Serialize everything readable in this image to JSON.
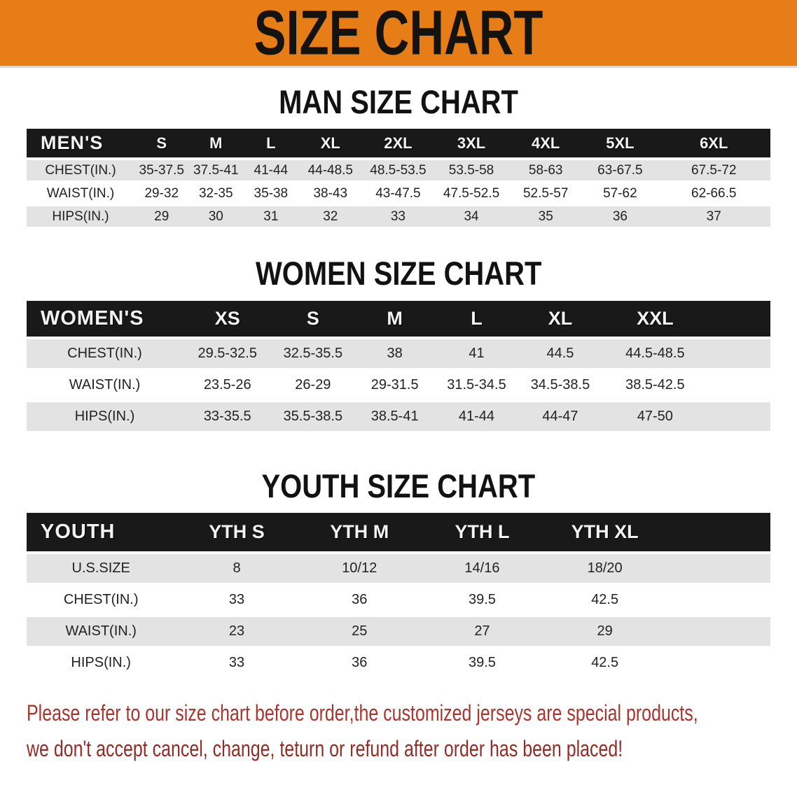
{
  "banner": {
    "title": "SIZE CHART"
  },
  "colors": {
    "banner_bg": "#e67d16",
    "title_color": "#151310",
    "header_bar": "#191919",
    "row_shade": "#e3e3e3",
    "disclaimer_red_1": "#a8352e",
    "disclaimer_red_2": "#8f2d27"
  },
  "sections": [
    {
      "heading": "MAN SIZE CHART",
      "table": {
        "header_label": "MEN'S",
        "columns": [
          "S",
          "M",
          "L",
          "XL",
          "2XL",
          "3XL",
          "4XL",
          "5XL",
          "6XL"
        ],
        "col_widths": [
          "14.5%",
          "7.3%",
          "7.3%",
          "7.5%",
          "8.5%",
          "9.7%",
          "10%",
          "10%",
          "10%",
          "15.2%"
        ],
        "rows": [
          {
            "label": "CHEST(IN.)",
            "values": [
              "35-37.5",
              "37.5-41",
              "41-44",
              "44-48.5",
              "48.5-53.5",
              "53.5-58",
              "58-63",
              "63-67.5",
              "67.5-72"
            ]
          },
          {
            "label": "WAIST(IN.)",
            "values": [
              "29-32",
              "32-35",
              "35-38",
              "38-43",
              "43-47.5",
              "47.5-52.5",
              "52.5-57",
              "57-62",
              "62-66.5"
            ]
          },
          {
            "label": "HIPS(IN.)",
            "values": [
              "29",
              "30",
              "31",
              "32",
              "33",
              "34",
              "35",
              "36",
              "37"
            ]
          }
        ]
      }
    },
    {
      "heading": "WOMEN SIZE CHART",
      "table": {
        "header_label": "WOMEN'S",
        "columns": [
          "XS",
          "S",
          "M",
          "L",
          "XL",
          "XXL"
        ],
        "col_widths": [
          "21%",
          "12%",
          "11%",
          "11%",
          "11%",
          "11.5%",
          "14%",
          "8.5%"
        ],
        "rows": [
          {
            "label": "CHEST(IN.)",
            "values": [
              "29.5-32.5",
              "32.5-35.5",
              "38",
              "41",
              "44.5",
              "44.5-48.5"
            ]
          },
          {
            "label": "WAIST(IN.)",
            "values": [
              "23.5-26",
              "26-29",
              "29-31.5",
              "31.5-34.5",
              "34.5-38.5",
              "38.5-42.5"
            ]
          },
          {
            "label": "HIPS(IN.)",
            "values": [
              "33-35.5",
              "35.5-38.5",
              "38.5-41",
              "41-44",
              "44-47",
              "47-50"
            ]
          }
        ]
      }
    },
    {
      "heading": "YOUTH SIZE CHART",
      "table": {
        "header_label": "YOUTH",
        "columns": [
          "YTH S",
          "YTH M",
          "YTH L",
          "YTH XL"
        ],
        "col_widths": [
          "20%",
          "16.5%",
          "16.5%",
          "16.5%",
          "16.5%",
          "14%"
        ],
        "rows": [
          {
            "label": "U.S.SIZE",
            "values": [
              "8",
              "10/12",
              "14/16",
              "18/20"
            ]
          },
          {
            "label": "CHEST(IN.)",
            "values": [
              "33",
              "36",
              "39.5",
              "42.5"
            ]
          },
          {
            "label": "WAIST(IN.)",
            "values": [
              "23",
              "25",
              "27",
              "29"
            ]
          },
          {
            "label": "HIPS(IN.)",
            "values": [
              "33",
              "36",
              "39.5",
              "42.5"
            ]
          }
        ]
      }
    }
  ],
  "disclaimer": {
    "line1": "Please refer to our size chart before order,the customized jerseys are special products,",
    "line2": "we don't accept cancel, change, teturn or refund after order has been placed!"
  }
}
